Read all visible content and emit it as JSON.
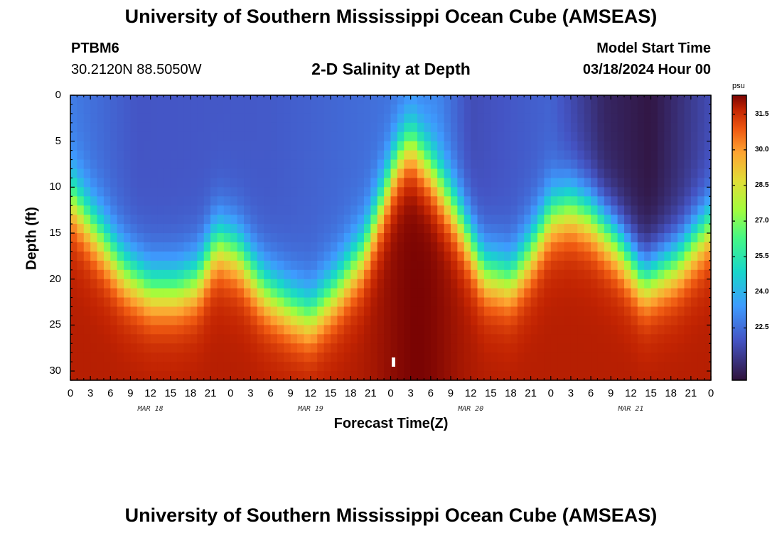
{
  "header": {
    "title": "University of Southern Mississippi Ocean Cube (AMSEAS)",
    "station_id": "PTBM6",
    "station_coords": "30.2120N  88.5050W",
    "plot_title": "2-D Salinity at Depth",
    "model_start_label": "Model Start Time",
    "model_start_value": "03/18/2024 Hour 00"
  },
  "footer": {
    "title": "University of Southern Mississippi Ocean Cube (AMSEAS)"
  },
  "chart_data": {
    "type": "heatmap",
    "title": "2-D Salinity at Depth",
    "xlabel": "Forecast Time(Z)",
    "ylabel": "Depth (ft)",
    "x_unit": "hours since 03/18/2024 00Z",
    "xlim": [
      0,
      96
    ],
    "ylim": [
      0,
      31
    ],
    "x_tick_labels": [
      "0",
      "3",
      "6",
      "9",
      "12",
      "15",
      "18",
      "21",
      "0",
      "3",
      "6",
      "9",
      "12",
      "15",
      "18",
      "21",
      "0",
      "3",
      "6",
      "9",
      "12",
      "15",
      "18",
      "21",
      "0",
      "3",
      "6",
      "9",
      "12",
      "15",
      "18",
      "21",
      "0"
    ],
    "y_ticks": [
      0,
      5,
      10,
      15,
      20,
      25,
      30
    ],
    "day_labels": [
      {
        "hour": 12,
        "label": "MAR 18"
      },
      {
        "hour": 36,
        "label": "MAR 19"
      },
      {
        "hour": 60,
        "label": "MAR 20"
      },
      {
        "hour": 84,
        "label": "MAR 21"
      }
    ],
    "colorbar": {
      "unit": "psu",
      "min": 20.3,
      "max": 32.3,
      "ticks": [
        "31.5",
        "30.0",
        "28.5",
        "27.0",
        "25.5",
        "24.0",
        "22.5"
      ]
    },
    "interface_depth_ft": [
      {
        "hour": 0,
        "depth": 11
      },
      {
        "hour": 4,
        "depth": 15
      },
      {
        "hour": 8,
        "depth": 19
      },
      {
        "hour": 12,
        "depth": 21
      },
      {
        "hour": 16,
        "depth": 21
      },
      {
        "hour": 19,
        "depth": 20
      },
      {
        "hour": 22,
        "depth": 16
      },
      {
        "hour": 25,
        "depth": 17
      },
      {
        "hour": 29,
        "depth": 21
      },
      {
        "hour": 33,
        "depth": 23
      },
      {
        "hour": 36,
        "depth": 24
      },
      {
        "hour": 40,
        "depth": 21
      },
      {
        "hour": 44,
        "depth": 17
      },
      {
        "hour": 47,
        "depth": 11
      },
      {
        "hour": 49,
        "depth": 7
      },
      {
        "hour": 51,
        "depth": 5
      },
      {
        "hour": 54,
        "depth": 8
      },
      {
        "hour": 58,
        "depth": 13
      },
      {
        "hour": 62,
        "depth": 19
      },
      {
        "hour": 66,
        "depth": 20
      },
      {
        "hour": 69,
        "depth": 17
      },
      {
        "hour": 72,
        "depth": 13
      },
      {
        "hour": 75,
        "depth": 12
      },
      {
        "hour": 78,
        "depth": 13
      },
      {
        "hour": 82,
        "depth": 16
      },
      {
        "hour": 86,
        "depth": 20
      },
      {
        "hour": 91,
        "depth": 18
      },
      {
        "hour": 96,
        "depth": 14
      }
    ],
    "surface_salinity_psu": [
      {
        "hour": 0,
        "value": 22.8
      },
      {
        "hour": 10,
        "value": 22.0
      },
      {
        "hour": 30,
        "value": 22.1
      },
      {
        "hour": 48,
        "value": 22.6
      },
      {
        "hour": 55,
        "value": 23.0
      },
      {
        "hour": 60,
        "value": 21.8
      },
      {
        "hour": 72,
        "value": 22.3
      },
      {
        "hour": 80,
        "value": 20.8
      },
      {
        "hour": 87,
        "value": 20.4
      },
      {
        "hour": 96,
        "value": 21.8
      }
    ],
    "bottom_salinity_psu": 31.8
  }
}
